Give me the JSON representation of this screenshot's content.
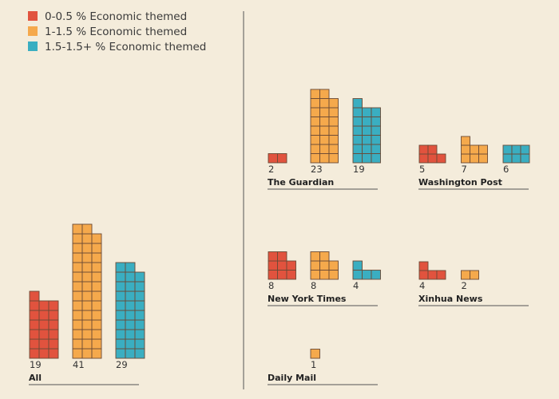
{
  "chart_data": {
    "type": "bar",
    "subtype": "unit-waffle",
    "legend": {
      "placement": "top-left",
      "items": [
        {
          "label": "0-0.5 % Economic themed",
          "color": "#e1533e"
        },
        {
          "label": "1-1.5 % Economic themed",
          "color": "#f5a94c"
        },
        {
          "label": "1.5-1.5+ % Economic themed",
          "color": "#3aaec1"
        }
      ]
    },
    "grid": false,
    "panels": [
      {
        "title": "All",
        "values": [
          19,
          41,
          29
        ]
      },
      {
        "title": "The Guardian",
        "values": [
          2,
          23,
          19
        ]
      },
      {
        "title": "Washington Post",
        "values": [
          5,
          7,
          6
        ]
      },
      {
        "title": "New York Times",
        "values": [
          8,
          8,
          4
        ]
      },
      {
        "title": "Xinhua News",
        "values": [
          4,
          2,
          null
        ]
      },
      {
        "title": "Daily Mail",
        "values": [
          null,
          1,
          null
        ]
      }
    ]
  }
}
